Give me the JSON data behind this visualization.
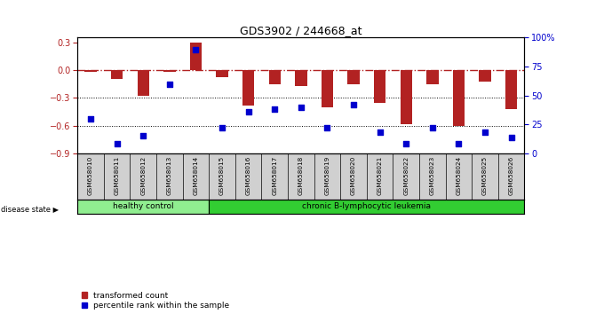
{
  "title": "GDS3902 / 244668_at",
  "samples": [
    "GSM658010",
    "GSM658011",
    "GSM658012",
    "GSM658013",
    "GSM658014",
    "GSM658015",
    "GSM658016",
    "GSM658017",
    "GSM658018",
    "GSM658019",
    "GSM658020",
    "GSM658021",
    "GSM658022",
    "GSM658023",
    "GSM658024",
    "GSM658025",
    "GSM658026"
  ],
  "bar_values": [
    -0.02,
    -0.1,
    -0.28,
    -0.02,
    0.3,
    -0.08,
    -0.38,
    -0.15,
    -0.17,
    -0.4,
    -0.15,
    -0.35,
    -0.58,
    -0.15,
    -0.6,
    -0.12,
    -0.42
  ],
  "dot_values": [
    30,
    8,
    15,
    60,
    90,
    22,
    36,
    38,
    40,
    22,
    42,
    18,
    8,
    22,
    8,
    18,
    14
  ],
  "ylim_left": [
    -0.9,
    0.35
  ],
  "ylim_right": [
    0,
    100
  ],
  "yticks_left": [
    0.3,
    0.0,
    -0.3,
    -0.6,
    -0.9
  ],
  "yticks_right": [
    100,
    75,
    50,
    25,
    0
  ],
  "ytick_labels_right": [
    "100%",
    "75",
    "50",
    "25",
    "0"
  ],
  "bar_color": "#B22222",
  "dot_color": "#0000CD",
  "hline_color": "#B22222",
  "grid_color": "#000000",
  "background_color": "#FFFFFF",
  "healthy_color": "#90EE90",
  "leukemia_color": "#32CD32",
  "label_area_color": "#D0D0D0",
  "healthy_label": "healthy control",
  "leukemia_label": "chronic B-lymphocytic leukemia",
  "disease_state_label": "disease state",
  "legend_bar": "transformed count",
  "legend_dot": "percentile rank within the sample",
  "n_healthy": 5,
  "n_leukemia": 12
}
